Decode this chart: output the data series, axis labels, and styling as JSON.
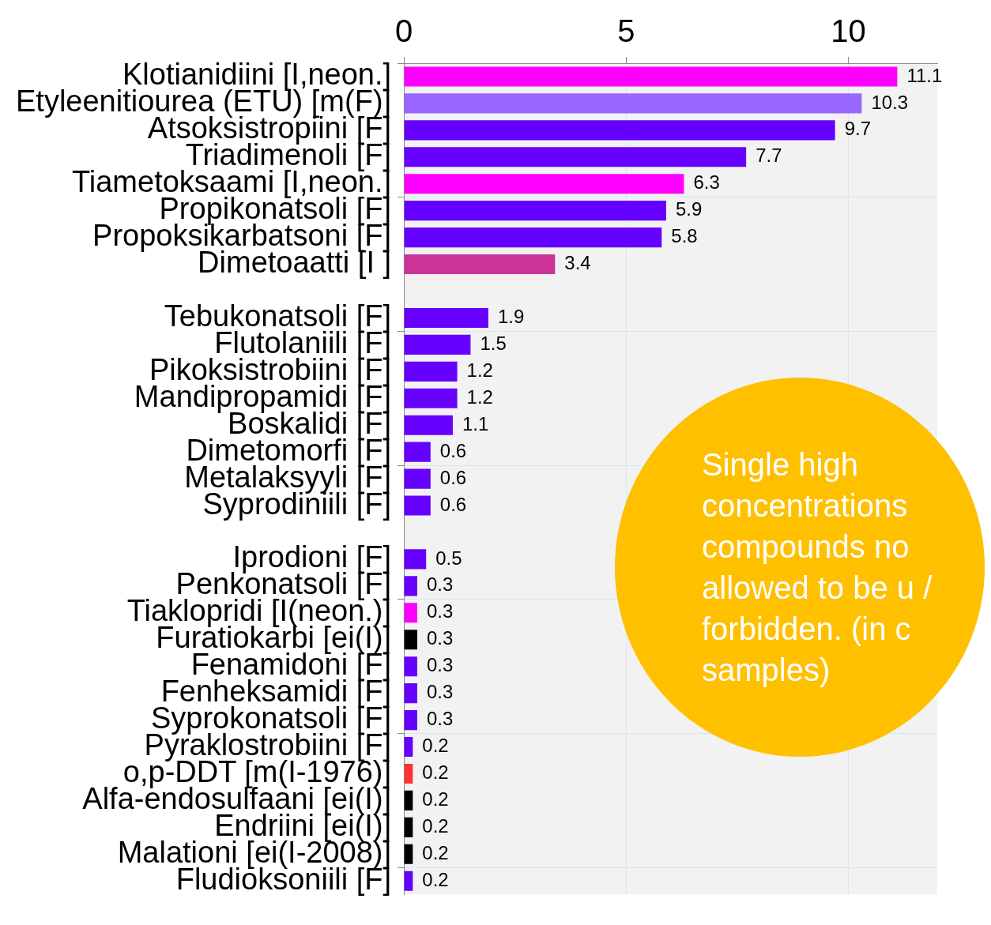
{
  "chart_data": {
    "type": "bar",
    "orientation": "horizontal",
    "categories": [
      "Klotianidiini [I,neon.]",
      "Etyleenitiourea (ETU) [m(F)]",
      "Atsoksistropiini [F]",
      "Triadimenoli [F]",
      "Tiametoksaami [I,neon.]",
      "Propikonatsoli [F]",
      "Propoksikarbatsoni [F]",
      "Dimetoaatti [I ]",
      null,
      "Tebukonatsoli [F]",
      "Flutolaniili [F]",
      "Pikoksistrobiini [F]",
      "Mandipropamidi [F]",
      "Boskalidi [F]",
      "Dimetomorfi [F]",
      "Metalaksyyli [F]",
      "Syprodiniili [F]",
      null,
      "Iprodioni [F]",
      "Penkonatsoli [F]",
      "Tiaklopridi [I(neon.)]",
      "Furatiokarbi [ei(I)]",
      "Fenamidoni [F]",
      "Fenheksamidi [F]",
      "Syprokonatsoli [F]",
      "Pyraklostrobiini [F]",
      "o,p-DDT [m(I-1976)]",
      "Alfa-endosulfaani [ei(I)]",
      "Endriini [ei(I)]",
      "Malationi [ei(I-2008)]",
      "Fludioksoniili [F]"
    ],
    "values": [
      11.1,
      10.3,
      9.7,
      7.7,
      6.3,
      5.9,
      5.8,
      3.4,
      null,
      1.9,
      1.5,
      1.2,
      1.2,
      1.1,
      0.6,
      0.6,
      0.6,
      null,
      0.5,
      0.3,
      0.3,
      0.3,
      0.3,
      0.3,
      0.3,
      0.2,
      0.2,
      0.2,
      0.2,
      0.2,
      0.2
    ],
    "colors": [
      "#ff00ff",
      "#9966ff",
      "#6600ff",
      "#6600ff",
      "#ff00ff",
      "#6600ff",
      "#6600ff",
      "#cc3399",
      null,
      "#6600ff",
      "#6600ff",
      "#6600ff",
      "#6600ff",
      "#6600ff",
      "#6600ff",
      "#6600ff",
      "#6600ff",
      null,
      "#6600ff",
      "#6600ff",
      "#ff00ff",
      "#000000",
      "#6600ff",
      "#6600ff",
      "#6600ff",
      "#6600ff",
      "#ff3333",
      "#000000",
      "#000000",
      "#000000",
      "#6600ff"
    ],
    "xlim": [
      0,
      12
    ],
    "xticks": [
      0,
      5,
      10
    ],
    "grid": true,
    "legend": false,
    "data_labels": true,
    "annotations": [
      "Single high concentrations compounds no allowed to be u / forbidden. (in c samples)"
    ]
  }
}
